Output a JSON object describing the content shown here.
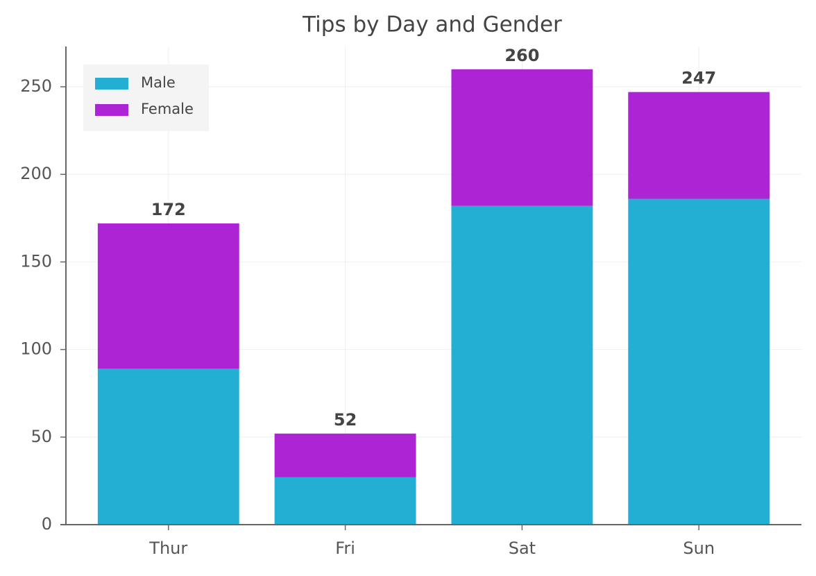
{
  "chart_data": {
    "type": "stacked_bar",
    "title": "Tips by Day and Gender",
    "categories": [
      "Thur",
      "Fri",
      "Sat",
      "Sun"
    ],
    "series": [
      {
        "name": "Male",
        "color": "#23afd3",
        "values": [
          89,
          27,
          182,
          186
        ]
      },
      {
        "name": "Female",
        "color": "#ac24d3",
        "values": [
          83,
          25,
          78,
          61
        ]
      }
    ],
    "total_labels": [
      "172",
      "52",
      "260",
      "247"
    ],
    "ylim": [
      0,
      273
    ],
    "yticks": [
      0,
      50,
      100,
      150,
      200,
      250
    ],
    "grid": true,
    "legend": "upper left"
  }
}
